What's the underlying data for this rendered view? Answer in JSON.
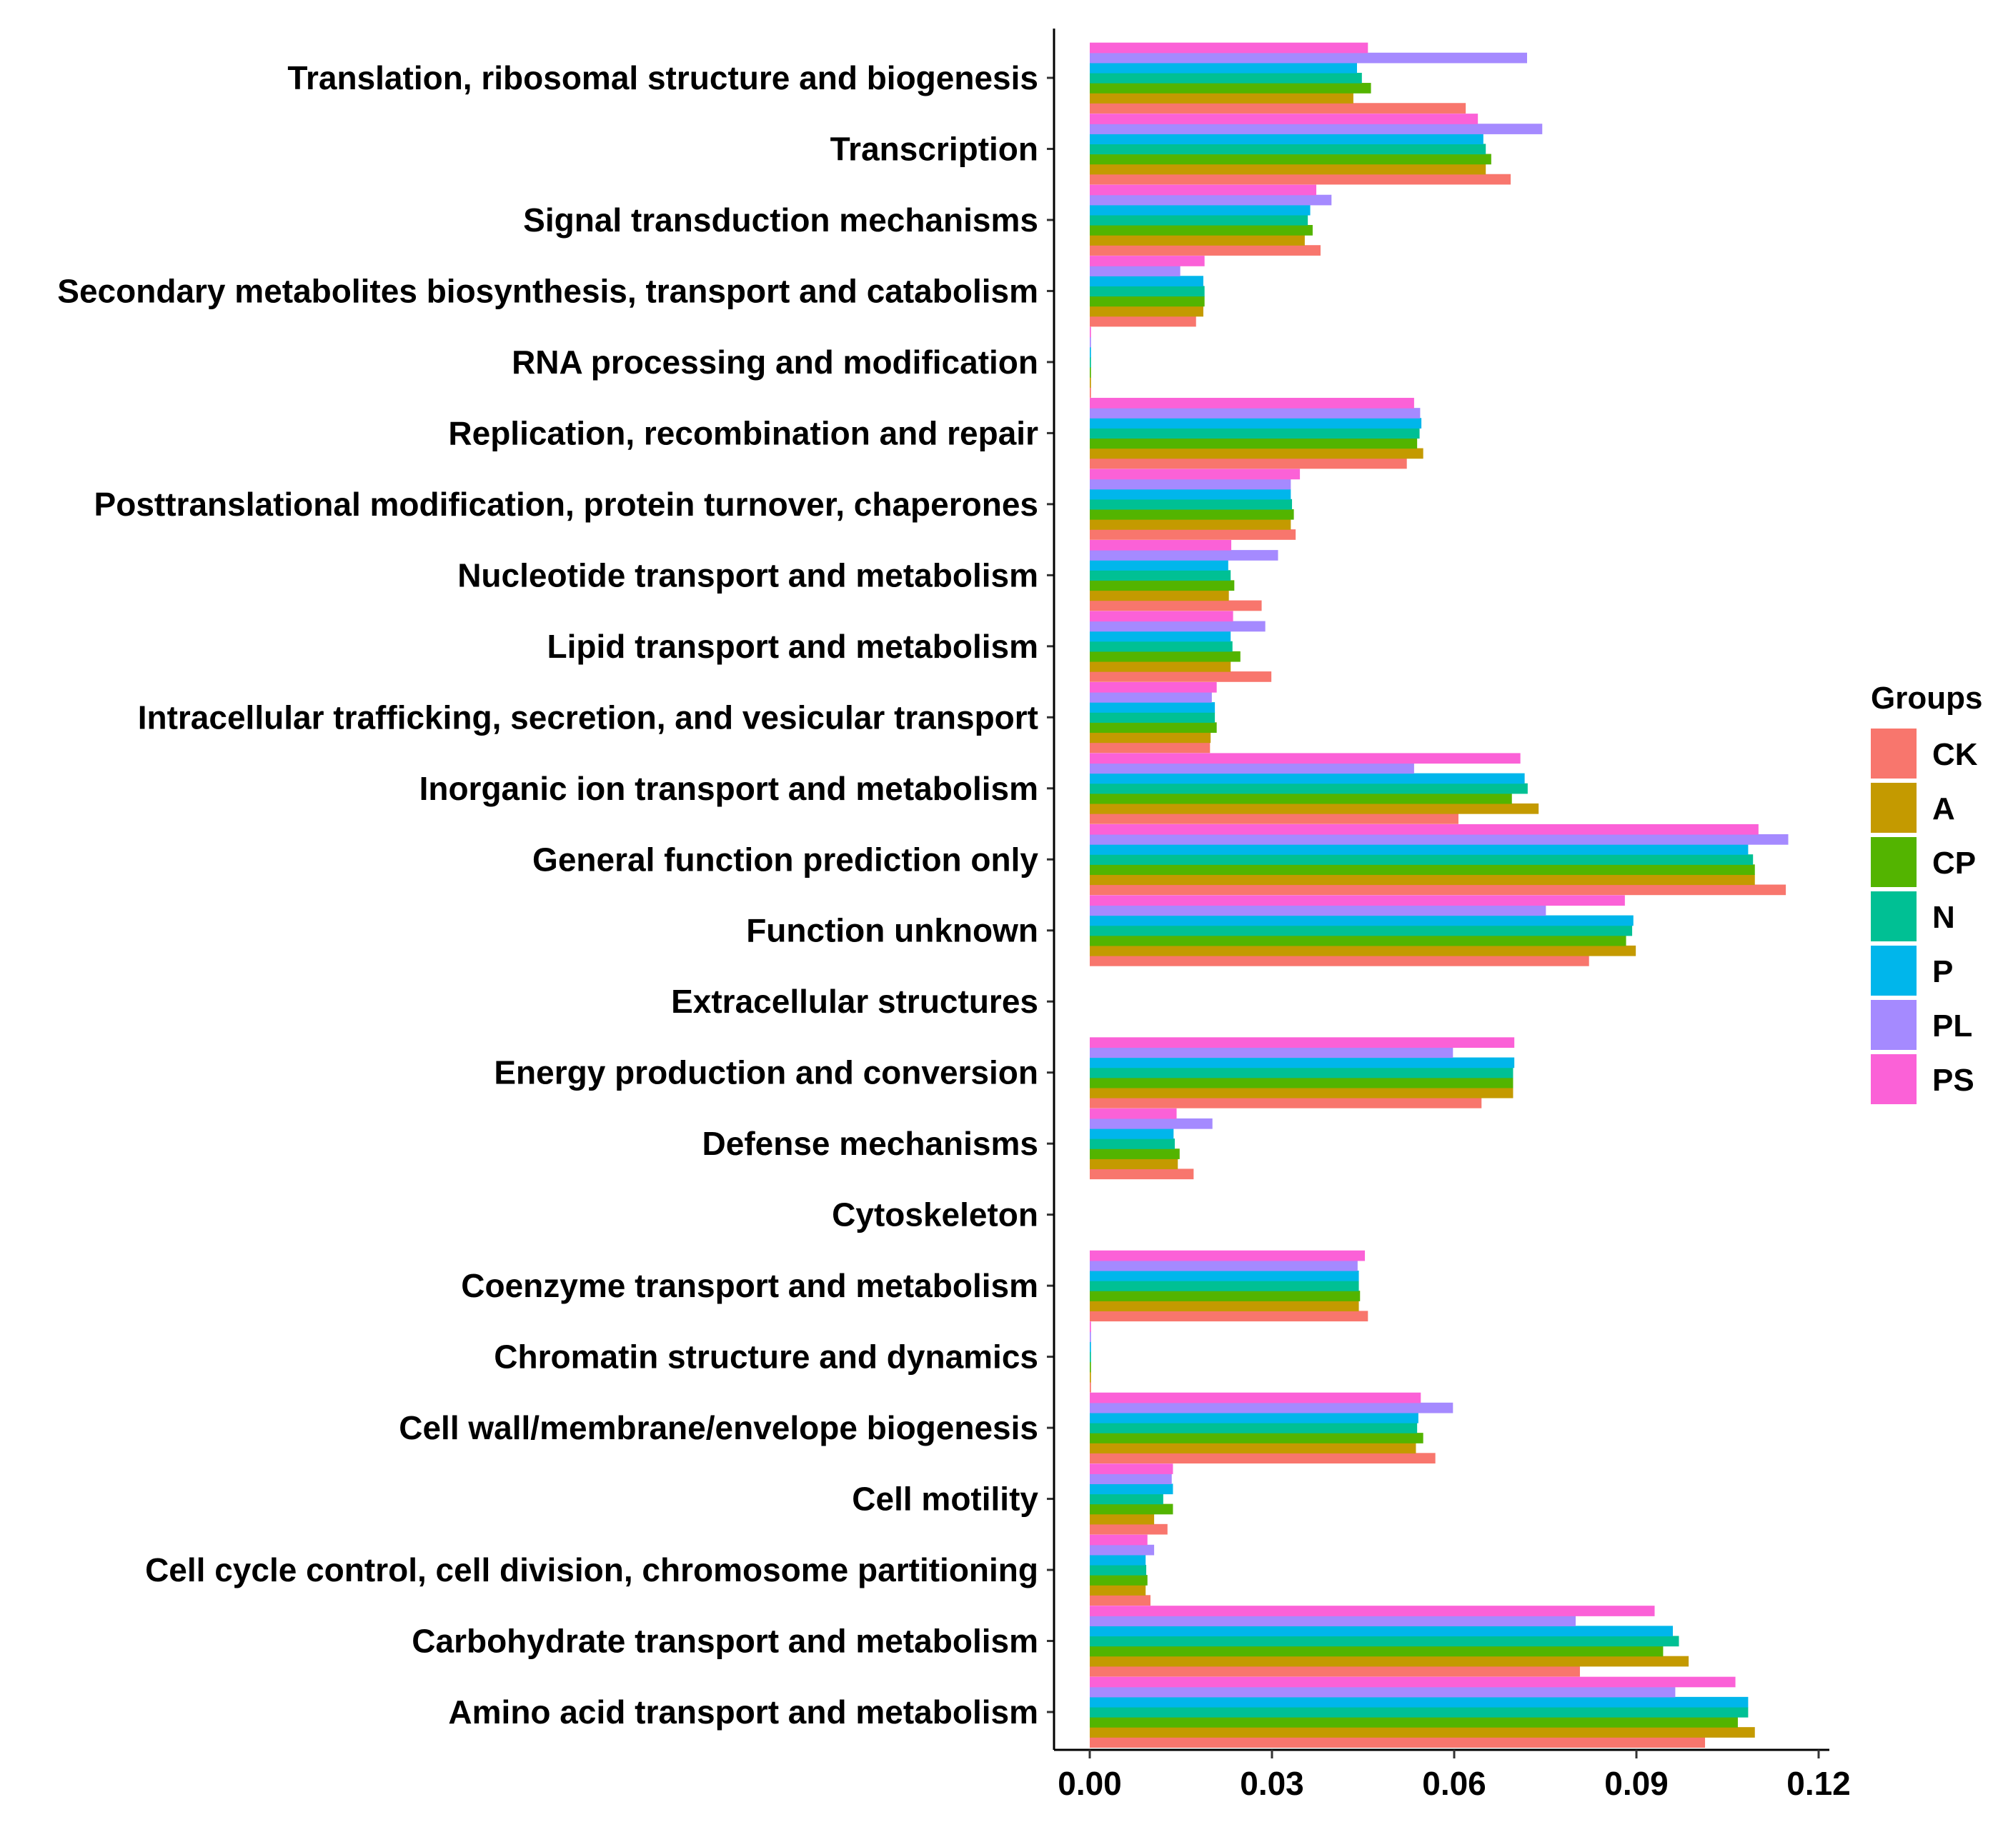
{
  "chart_data": {
    "type": "bar",
    "orientation": "horizontal",
    "title": "",
    "xlabel": "",
    "ylabel": "",
    "xlim": [
      0,
      0.12
    ],
    "x_ticks": [
      0.0,
      0.03,
      0.06,
      0.09,
      0.12
    ],
    "x_tick_labels": [
      "0.00",
      "0.03",
      "0.06",
      "0.09",
      "0.12"
    ],
    "grid": false,
    "legend": {
      "title": "Groups",
      "position": "right"
    },
    "categories": [
      "Translation, ribosomal structure and biogenesis",
      "Transcription",
      "Signal transduction mechanisms",
      "Secondary metabolites biosynthesis, transport and catabolism",
      "RNA processing and modification",
      "Replication, recombination and repair",
      "Posttranslational modification, protein turnover, chaperones",
      "Nucleotide transport and metabolism",
      "Lipid transport and metabolism",
      "Intracellular trafficking, secretion, and vesicular transport",
      "Inorganic ion transport and metabolism",
      "General function prediction only",
      "Function unknown",
      "Extracellular structures",
      "Energy production and conversion",
      "Defense mechanisms",
      "Cytoskeleton",
      "Coenzyme transport and metabolism",
      "Chromatin structure and dynamics",
      "Cell wall/membrane/envelope biogenesis",
      "Cell motility",
      "Cell cycle control, cell division, chromosome partitioning",
      "Carbohydrate transport and metabolism",
      "Amino acid transport and metabolism"
    ],
    "series": [
      {
        "name": "CK",
        "color": "#F8766D",
        "values": [
          0.0619,
          0.0693,
          0.038,
          0.0175,
          0.0002,
          0.0522,
          0.0339,
          0.0283,
          0.0299,
          0.0198,
          0.0607,
          0.1146,
          0.0822,
          0,
          0.0645,
          0.0171,
          0,
          0.0458,
          0.0002,
          0.0569,
          0.0128,
          0.01,
          0.0807,
          0.1013
        ]
      },
      {
        "name": "A",
        "color": "#C49A00",
        "values": [
          0.0434,
          0.0652,
          0.0354,
          0.0187,
          0.0002,
          0.0549,
          0.0331,
          0.0229,
          0.0232,
          0.0199,
          0.0739,
          0.1095,
          0.0899,
          0,
          0.0697,
          0.0145,
          0,
          0.0443,
          0.0002,
          0.0537,
          0.0106,
          0.0092,
          0.0986,
          0.1095
        ]
      },
      {
        "name": "CP",
        "color": "#53B400",
        "values": [
          0.0463,
          0.0661,
          0.0367,
          0.0189,
          0.0002,
          0.0539,
          0.0336,
          0.0238,
          0.0248,
          0.0209,
          0.0695,
          0.1095,
          0.0883,
          0,
          0.0697,
          0.0148,
          0,
          0.0445,
          0.0002,
          0.0549,
          0.0137,
          0.0095,
          0.0944,
          0.1067
        ]
      },
      {
        "name": "N",
        "color": "#00C094",
        "values": [
          0.0448,
          0.0652,
          0.0359,
          0.0189,
          0.0002,
          0.0543,
          0.0333,
          0.0232,
          0.0235,
          0.0206,
          0.0721,
          0.1092,
          0.0893,
          0,
          0.0697,
          0.014,
          0,
          0.0443,
          0.0002,
          0.0539,
          0.0121,
          0.0093,
          0.097,
          0.1084
        ]
      },
      {
        "name": "P",
        "color": "#00B6EB",
        "values": [
          0.044,
          0.0648,
          0.0363,
          0.0187,
          0.0002,
          0.0546,
          0.0331,
          0.0228,
          0.0232,
          0.0206,
          0.0716,
          0.1084,
          0.0895,
          0,
          0.0699,
          0.0138,
          0,
          0.0443,
          0.0002,
          0.0541,
          0.0137,
          0.0092,
          0.096,
          0.1084
        ]
      },
      {
        "name": "PL",
        "color": "#A58AFF",
        "values": [
          0.072,
          0.0745,
          0.0398,
          0.0149,
          0.0002,
          0.0544,
          0.0331,
          0.031,
          0.0289,
          0.0201,
          0.0534,
          0.115,
          0.0751,
          0,
          0.0598,
          0.0202,
          0,
          0.0441,
          0.0002,
          0.0598,
          0.0135,
          0.0106,
          0.08,
          0.0964
        ]
      },
      {
        "name": "PS",
        "color": "#FB61D7",
        "values": [
          0.0458,
          0.0639,
          0.0373,
          0.0189,
          0.0002,
          0.0534,
          0.0346,
          0.0233,
          0.0236,
          0.0209,
          0.0709,
          0.1101,
          0.0881,
          0,
          0.0699,
          0.0143,
          0,
          0.0453,
          0.0002,
          0.0545,
          0.0137,
          0.0095,
          0.093,
          0.1063
        ]
      }
    ]
  }
}
